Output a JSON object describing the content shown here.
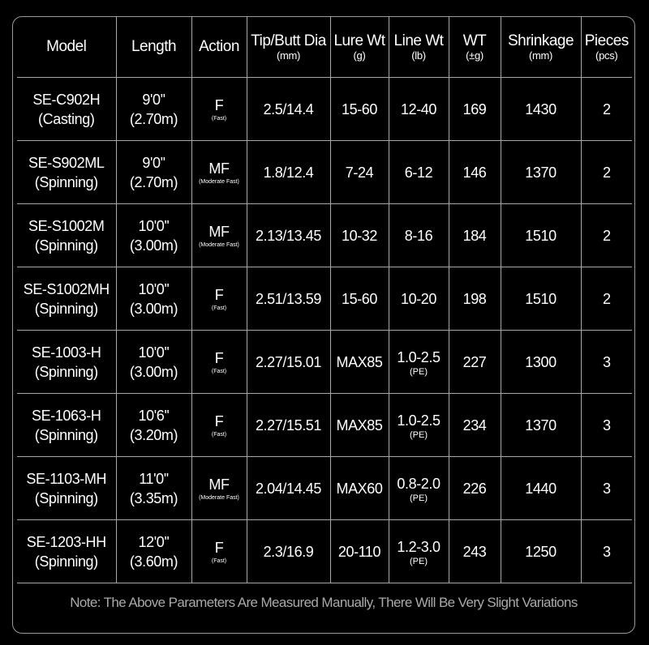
{
  "columns": [
    {
      "label": "Model",
      "unit": ""
    },
    {
      "label": "Length",
      "unit": ""
    },
    {
      "label": "Action",
      "unit": ""
    },
    {
      "label": "Tip/Butt Dia",
      "unit": "(mm)"
    },
    {
      "label": "Lure Wt",
      "unit": "(g)"
    },
    {
      "label": "Line Wt",
      "unit": "(lb)"
    },
    {
      "label": "WT",
      "unit": "(±g)"
    },
    {
      "label": "Shrinkage",
      "unit": "(mm)"
    },
    {
      "label": "Pieces",
      "unit": "(pcs)"
    }
  ],
  "rows": [
    {
      "model": "SE-C902H",
      "type": "(Casting)",
      "length_ft": "9'0''",
      "length_m": "(2.70m)",
      "action": "F",
      "action_desc": "(Fast)",
      "dia": "2.5/14.4",
      "lure": "15-60",
      "line": "12-40",
      "line_note": "",
      "wt": "169",
      "shrinkage": "1430",
      "pieces": "2"
    },
    {
      "model": "SE-S902ML",
      "type": "(Spinning)",
      "length_ft": "9'0''",
      "length_m": "(2.70m)",
      "action": "MF",
      "action_desc": "(Moderate Fast)",
      "dia": "1.8/12.4",
      "lure": "7-24",
      "line": "6-12",
      "line_note": "",
      "wt": "146",
      "shrinkage": "1370",
      "pieces": "2"
    },
    {
      "model": "SE-S1002M",
      "type": "(Spinning)",
      "length_ft": "10'0''",
      "length_m": "(3.00m)",
      "action": "MF",
      "action_desc": "(Moderate Fast)",
      "dia": "2.13/13.45",
      "lure": "10-32",
      "line": "8-16",
      "line_note": "",
      "wt": "184",
      "shrinkage": "1510",
      "pieces": "2"
    },
    {
      "model": "SE-S1002MH",
      "type": "(Spinning)",
      "length_ft": "10'0''",
      "length_m": "(3.00m)",
      "action": "F",
      "action_desc": "(Fast)",
      "dia": "2.51/13.59",
      "lure": "15-60",
      "line": "10-20",
      "line_note": "",
      "wt": "198",
      "shrinkage": "1510",
      "pieces": "2"
    },
    {
      "model": "SE-1003-H",
      "type": "(Spinning)",
      "length_ft": "10'0''",
      "length_m": "(3.00m)",
      "action": "F",
      "action_desc": "(Fast)",
      "dia": "2.27/15.01",
      "lure": "MAX85",
      "line": "1.0-2.5",
      "line_note": "(PE)",
      "wt": "227",
      "shrinkage": "1300",
      "pieces": "3"
    },
    {
      "model": "SE-1063-H",
      "type": "(Spinning)",
      "length_ft": "10'6''",
      "length_m": "(3.20m)",
      "action": "F",
      "action_desc": "(Fast)",
      "dia": "2.27/15.51",
      "lure": "MAX85",
      "line": "1.0-2.5",
      "line_note": "(PE)",
      "wt": "234",
      "shrinkage": "1370",
      "pieces": "3"
    },
    {
      "model": "SE-1103-MH",
      "type": "(Spinning)",
      "length_ft": "11'0''",
      "length_m": "(3.35m)",
      "action": "MF",
      "action_desc": "(Moderate Fast)",
      "dia": "2.04/14.45",
      "lure": "MAX60",
      "line": "0.8-2.0",
      "line_note": "(PE)",
      "wt": "226",
      "shrinkage": "1440",
      "pieces": "3"
    },
    {
      "model": "SE-1203-HH",
      "type": "(Spinning)",
      "length_ft": "12'0''",
      "length_m": "(3.60m)",
      "action": "F",
      "action_desc": "(Fast)",
      "dia": "2.3/16.9",
      "lure": "20-110",
      "line": "1.2-3.0",
      "line_note": "(PE)",
      "wt": "243",
      "shrinkage": "1250",
      "pieces": "3"
    }
  ],
  "note": "Note: The Above Parameters Are Measured Manually, There Will Be Very Slight Variations"
}
